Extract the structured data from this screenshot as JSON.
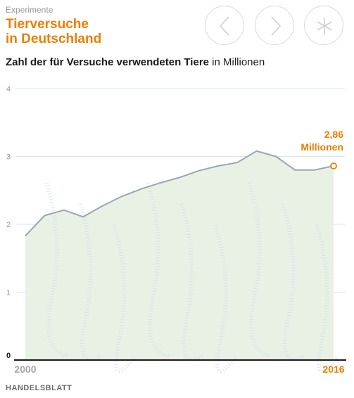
{
  "header": {
    "kicker": "Experimente",
    "title_line1": "Tierversuche",
    "title_line2": "in Deutschland",
    "subtitle_bold": "Zahl der für Versuche verwendeten Tiere",
    "subtitle_rest": "in Millionen"
  },
  "nav": {
    "prev_icon": "chevron-left-icon",
    "next_icon": "chevron-right-icon",
    "menu_icon": "asterisk-icon"
  },
  "colors": {
    "accent": "#f07d00",
    "line": "#9aa6b2",
    "area": "#e9f1e5",
    "grid": "#dde3e8",
    "text_muted": "#a6a6a6"
  },
  "chart_data": {
    "type": "area",
    "x": [
      2000,
      2001,
      2002,
      2003,
      2004,
      2005,
      2006,
      2007,
      2008,
      2009,
      2010,
      2011,
      2012,
      2013,
      2014,
      2015,
      2016
    ],
    "values": [
      1.83,
      2.13,
      2.21,
      2.11,
      2.27,
      2.41,
      2.52,
      2.61,
      2.69,
      2.79,
      2.86,
      2.91,
      3.08,
      3.0,
      2.8,
      2.8,
      2.86
    ],
    "ylim": [
      0,
      4
    ],
    "yticks": [
      "0",
      "1",
      "2",
      "3",
      "4"
    ],
    "xtick_first": "2000",
    "xtick_last": "2016",
    "annotation_value": "2,86",
    "annotation_unit": "Millionen",
    "grid": true
  },
  "footer": {
    "source": "HANDELSBLATT"
  }
}
